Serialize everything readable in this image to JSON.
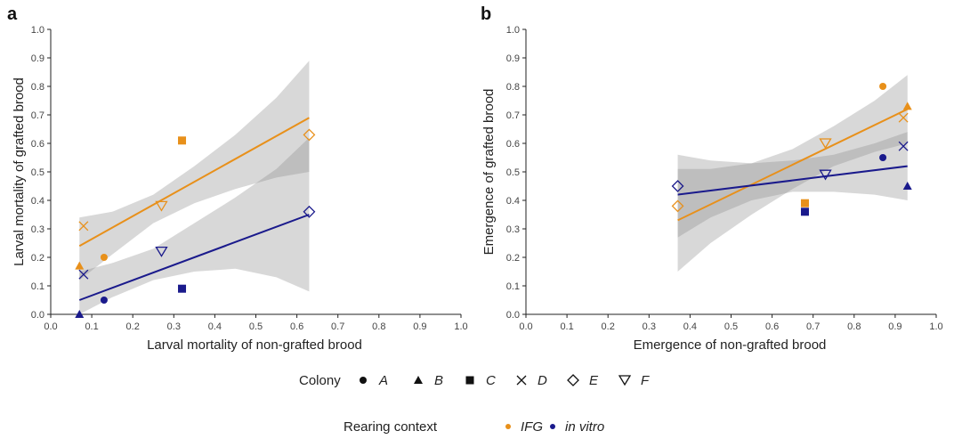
{
  "chart_data": [
    {
      "panel": "a",
      "type": "scatter",
      "xlabel": "Larval mortality of non-grafted brood",
      "ylabel": "Larval mortality of grafted brood",
      "xlim": [
        0,
        1
      ],
      "ylim": [
        0,
        1
      ],
      "xticks": [
        "0.0",
        "0.1",
        "0.2",
        "0.3",
        "0.4",
        "0.5",
        "0.6",
        "0.7",
        "0.8",
        "0.9",
        "1.0"
      ],
      "yticks": [
        "0.0",
        "0.1",
        "0.2",
        "0.3",
        "0.4",
        "0.5",
        "0.6",
        "0.7",
        "0.8",
        "0.9",
        "1.0"
      ],
      "grid": false,
      "series": [
        {
          "name": "IFG",
          "color": "#E8901A",
          "points": [
            {
              "colony": "A",
              "x": 0.13,
              "y": 0.2
            },
            {
              "colony": "B",
              "x": 0.07,
              "y": 0.17
            },
            {
              "colony": "C",
              "x": 0.32,
              "y": 0.61
            },
            {
              "colony": "D",
              "x": 0.08,
              "y": 0.31
            },
            {
              "colony": "E",
              "x": 0.63,
              "y": 0.63
            },
            {
              "colony": "F",
              "x": 0.27,
              "y": 0.38
            }
          ],
          "fit": {
            "x": [
              0.07,
              0.63
            ],
            "y": [
              0.24,
              0.69
            ]
          },
          "ci_upper": [
            [
              0.07,
              0.34
            ],
            [
              0.15,
              0.36
            ],
            [
              0.25,
              0.42
            ],
            [
              0.35,
              0.52
            ],
            [
              0.45,
              0.63
            ],
            [
              0.55,
              0.76
            ],
            [
              0.63,
              0.89
            ]
          ],
          "ci_lower": [
            [
              0.07,
              0.12
            ],
            [
              0.15,
              0.21
            ],
            [
              0.25,
              0.32
            ],
            [
              0.35,
              0.39
            ],
            [
              0.45,
              0.44
            ],
            [
              0.55,
              0.48
            ],
            [
              0.63,
              0.5
            ]
          ]
        },
        {
          "name": "in vitro",
          "color": "#1A1A8C",
          "points": [
            {
              "colony": "A",
              "x": 0.13,
              "y": 0.05
            },
            {
              "colony": "B",
              "x": 0.07,
              "y": 0.0
            },
            {
              "colony": "C",
              "x": 0.32,
              "y": 0.09
            },
            {
              "colony": "D",
              "x": 0.08,
              "y": 0.14
            },
            {
              "colony": "E",
              "x": 0.63,
              "y": 0.36
            },
            {
              "colony": "F",
              "x": 0.27,
              "y": 0.22
            }
          ],
          "fit": {
            "x": [
              0.07,
              0.63
            ],
            "y": [
              0.05,
              0.35
            ]
          },
          "ci_upper": [
            [
              0.07,
              0.15
            ],
            [
              0.15,
              0.18
            ],
            [
              0.25,
              0.23
            ],
            [
              0.35,
              0.32
            ],
            [
              0.45,
              0.41
            ],
            [
              0.55,
              0.51
            ],
            [
              0.63,
              0.62
            ]
          ],
          "ci_lower": [
            [
              0.07,
              -0.05
            ],
            [
              0.15,
              0.06
            ],
            [
              0.25,
              0.12
            ],
            [
              0.35,
              0.15
            ],
            [
              0.45,
              0.16
            ],
            [
              0.55,
              0.13
            ],
            [
              0.63,
              0.08
            ]
          ]
        }
      ]
    },
    {
      "panel": "b",
      "type": "scatter",
      "xlabel": "Emergence of non-grafted brood",
      "ylabel": "Emergence of grafted brood",
      "xlim": [
        0,
        1
      ],
      "ylim": [
        0,
        1
      ],
      "xticks": [
        "0.0",
        "0.1",
        "0.2",
        "0.3",
        "0.4",
        "0.5",
        "0.6",
        "0.7",
        "0.8",
        "0.9",
        "1.0"
      ],
      "yticks": [
        "0.0",
        "0.1",
        "0.2",
        "0.3",
        "0.4",
        "0.5",
        "0.6",
        "0.7",
        "0.8",
        "0.9",
        "1.0"
      ],
      "grid": false,
      "series": [
        {
          "name": "IFG",
          "color": "#E8901A",
          "points": [
            {
              "colony": "A",
              "x": 0.87,
              "y": 0.8
            },
            {
              "colony": "B",
              "x": 0.93,
              "y": 0.73
            },
            {
              "colony": "C",
              "x": 0.68,
              "y": 0.39
            },
            {
              "colony": "D",
              "x": 0.92,
              "y": 0.69
            },
            {
              "colony": "E",
              "x": 0.37,
              "y": 0.38
            },
            {
              "colony": "F",
              "x": 0.73,
              "y": 0.6
            }
          ],
          "fit": {
            "x": [
              0.37,
              0.93
            ],
            "y": [
              0.33,
              0.72
            ]
          },
          "ci_upper": [
            [
              0.37,
              0.51
            ],
            [
              0.45,
              0.51
            ],
            [
              0.55,
              0.53
            ],
            [
              0.65,
              0.58
            ],
            [
              0.75,
              0.66
            ],
            [
              0.85,
              0.75
            ],
            [
              0.93,
              0.84
            ]
          ],
          "ci_lower": [
            [
              0.37,
              0.15
            ],
            [
              0.45,
              0.25
            ],
            [
              0.55,
              0.35
            ],
            [
              0.65,
              0.44
            ],
            [
              0.75,
              0.52
            ],
            [
              0.85,
              0.57
            ],
            [
              0.93,
              0.6
            ]
          ]
        },
        {
          "name": "in vitro",
          "color": "#1A1A8C",
          "points": [
            {
              "colony": "A",
              "x": 0.87,
              "y": 0.55
            },
            {
              "colony": "B",
              "x": 0.93,
              "y": 0.45
            },
            {
              "colony": "C",
              "x": 0.68,
              "y": 0.36
            },
            {
              "colony": "D",
              "x": 0.92,
              "y": 0.59
            },
            {
              "colony": "E",
              "x": 0.37,
              "y": 0.45
            },
            {
              "colony": "F",
              "x": 0.73,
              "y": 0.49
            }
          ],
          "fit": {
            "x": [
              0.37,
              0.93
            ],
            "y": [
              0.42,
              0.52
            ]
          },
          "ci_upper": [
            [
              0.37,
              0.56
            ],
            [
              0.45,
              0.54
            ],
            [
              0.55,
              0.53
            ],
            [
              0.65,
              0.54
            ],
            [
              0.75,
              0.56
            ],
            [
              0.85,
              0.6
            ],
            [
              0.93,
              0.64
            ]
          ],
          "ci_lower": [
            [
              0.37,
              0.27
            ],
            [
              0.45,
              0.34
            ],
            [
              0.55,
              0.4
            ],
            [
              0.65,
              0.43
            ],
            [
              0.75,
              0.43
            ],
            [
              0.85,
              0.42
            ],
            [
              0.93,
              0.4
            ]
          ]
        }
      ]
    }
  ],
  "legend": {
    "colony_title": "Colony",
    "colonies": [
      {
        "label": "A",
        "shape": "circle"
      },
      {
        "label": "B",
        "shape": "triangle"
      },
      {
        "label": "C",
        "shape": "square"
      },
      {
        "label": "D",
        "shape": "cross"
      },
      {
        "label": "E",
        "shape": "diamond-open"
      },
      {
        "label": "F",
        "shape": "triangle-down-open"
      }
    ],
    "context_title": "Rearing context",
    "contexts": [
      {
        "label": "IFG",
        "color": "#E8901A"
      },
      {
        "label": "in vitro",
        "color": "#1A1A8C"
      }
    ]
  }
}
